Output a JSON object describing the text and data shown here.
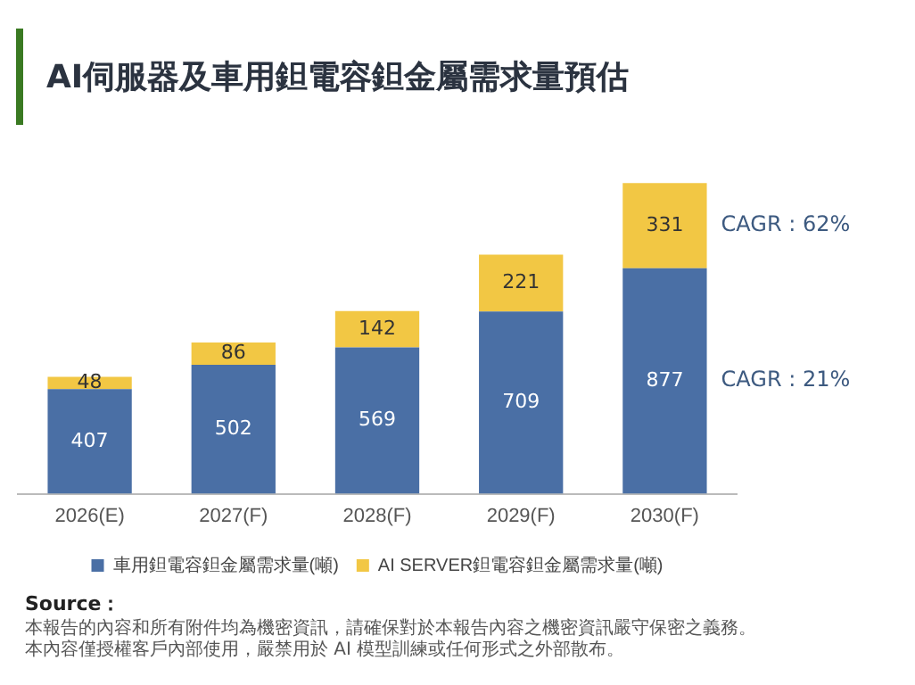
{
  "chart_data": {
    "type": "bar",
    "title": "AI伺服器及車用鉭電容鉭金屬需求量預估",
    "categories": [
      "2026(E)",
      "2027(F)",
      "2028(F)",
      "2029(F)",
      "2030(F)"
    ],
    "stacked": true,
    "data_labels": true,
    "legend": "bottom",
    "grid": false,
    "series": [
      {
        "name": "車用鉭電容鉭金屬需求量(噸)",
        "color": "#4a6fa5",
        "values": [
          407,
          502,
          569,
          709,
          877
        ]
      },
      {
        "name": "AI SERVER鉭電容鉭金屬需求量(噸)",
        "color": "#f2c744",
        "values": [
          48,
          86,
          142,
          221,
          331
        ]
      }
    ],
    "annotations": [
      "CAGR : 62%",
      "CAGR : 21%",
      "Source：",
      "本報告的內容和所有附件均為機密資訊，請確保對於本報告內容之機密資訊嚴守保密之義務。",
      "本內容僅授權客戶內部使用，嚴禁用於 AI 模型訓練或任何形式之外部散布。"
    ]
  }
}
